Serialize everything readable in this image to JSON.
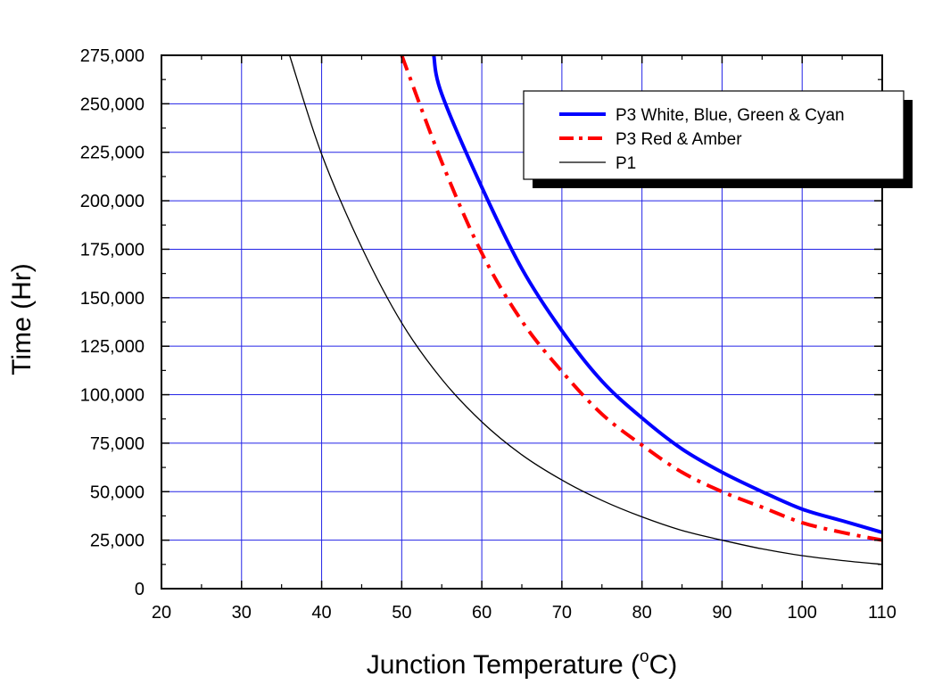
{
  "chart_data": {
    "type": "line",
    "xlabel": "Junction Temperature (",
    "xlabel_sup": "o",
    "xlabel_suffix": "C)",
    "ylabel": "Time (Hr)",
    "xlim": [
      20,
      110
    ],
    "ylim": [
      0,
      275000
    ],
    "x_ticks": [
      20,
      30,
      40,
      50,
      60,
      70,
      80,
      90,
      100,
      110
    ],
    "x_tick_labels": [
      "20",
      "30",
      "40",
      "50",
      "60",
      "70",
      "80",
      "90",
      "100",
      "110"
    ],
    "y_ticks": [
      0,
      25000,
      50000,
      75000,
      100000,
      125000,
      150000,
      175000,
      200000,
      225000,
      250000,
      275000
    ],
    "y_tick_labels": [
      "0",
      "25,000",
      "50,000",
      "75,000",
      "100,000",
      "125,000",
      "150,000",
      "175,000",
      "200,000",
      "225,000",
      "250,000",
      "275,000"
    ],
    "grid": true,
    "grid_color": "#2323e6",
    "legend_position": "top-right",
    "series": [
      {
        "name": "P3 White, Blue, Green & Cyan",
        "color": "#0000ff",
        "style": "solid-thick",
        "x": [
          54,
          55,
          60,
          65,
          70,
          75,
          80,
          85,
          90,
          95,
          100,
          105,
          110
        ],
        "y": [
          275000,
          255000,
          207000,
          165000,
          133000,
          107000,
          88000,
          72000,
          60000,
          50000,
          41000,
          35000,
          29000
        ]
      },
      {
        "name": "P3 Red & Amber",
        "color": "#ff0000",
        "style": "dash-dot",
        "x": [
          50,
          55,
          60,
          65,
          70,
          75,
          80,
          85,
          90,
          95,
          100,
          105,
          110
        ],
        "y": [
          275000,
          220000,
          173000,
          138000,
          112000,
          90000,
          74000,
          60000,
          50000,
          42000,
          34000,
          29000,
          25000
        ]
      },
      {
        "name": "P1",
        "color": "#000000",
        "style": "solid-thin",
        "x": [
          36,
          40,
          45,
          50,
          55,
          60,
          65,
          70,
          75,
          80,
          85,
          90,
          95,
          100,
          105,
          110
        ],
        "y": [
          275000,
          224000,
          176000,
          137000,
          108000,
          86000,
          69000,
          56000,
          45500,
          37000,
          30000,
          25000,
          20500,
          17000,
          14500,
          12500
        ]
      }
    ]
  }
}
